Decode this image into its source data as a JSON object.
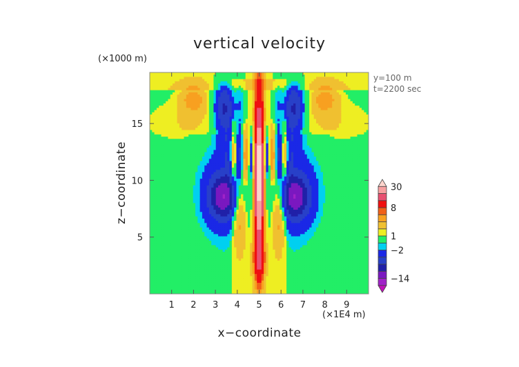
{
  "chart_data": {
    "type": "heatmap",
    "title": "vertical velocity",
    "xlabel": "x−coordinate",
    "ylabel": "z−coordinate",
    "x_unit": "(×1E4 m)",
    "y_unit": "(×1000 m)",
    "annotations": [
      "y=100 m",
      "t=2200 sec"
    ],
    "xlim": [
      0,
      10
    ],
    "ylim": [
      0,
      19.5
    ],
    "x_ticks": [
      1,
      2,
      3,
      4,
      5,
      6,
      7,
      8,
      9
    ],
    "y_ticks": [
      5,
      10,
      15
    ],
    "colorbar": {
      "tick_labels": [
        "30",
        "8",
        "1",
        "−2",
        "−14"
      ],
      "tick_values": [
        30,
        8,
        1,
        -2,
        -14
      ],
      "levels": [
        -20,
        -17,
        -14,
        -11,
        -8,
        -5,
        -2,
        -1,
        1,
        2,
        4,
        6,
        8,
        15,
        22,
        30,
        40
      ],
      "colors": [
        "#c010b8",
        "#a022c8",
        "#7a18c0",
        "#2020a8",
        "#2840c8",
        "#1a28e6",
        "#00d0f0",
        "#22ee66",
        "#eeee22",
        "#f0c030",
        "#f8a020",
        "#f06018",
        "#f01010",
        "#e85070",
        "#f8a0a0",
        "#fcd4cc"
      ],
      "extend": "both"
    },
    "features": [
      {
        "kind": "background",
        "value": 0,
        "color": "#22ee66"
      },
      {
        "kind": "upper_plateau_lobes",
        "value": 1.5,
        "color": "#eeee22"
      },
      {
        "kind": "central_column",
        "x_range": [
          3.8,
          6.2
        ],
        "value": 1.5,
        "color": "#eeee22"
      },
      {
        "kind": "updraft_core",
        "x_center": 5.0,
        "z_range": [
          2,
          17
        ],
        "peak": 30
      },
      {
        "kind": "downdraft_lobes",
        "x_center": [
          3.4,
          6.6
        ],
        "z_center": 8.5,
        "min": -10
      },
      {
        "kind": "upper_downdraft_lobes",
        "x_center": [
          3.4,
          6.6
        ],
        "z_center": 16,
        "min": -8
      }
    ]
  }
}
